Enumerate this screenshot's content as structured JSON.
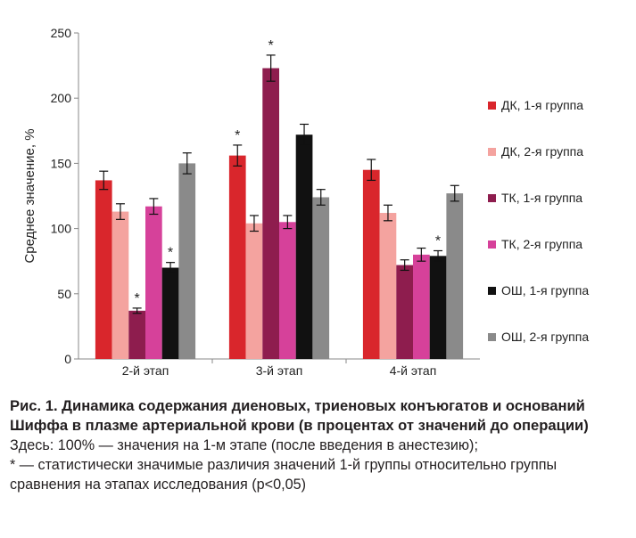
{
  "chart_data": {
    "type": "bar",
    "ylabel": "Среднее значение, %",
    "ylim": [
      0,
      250
    ],
    "yticks": [
      0,
      50,
      100,
      150,
      200,
      250
    ],
    "categories": [
      "2-й этап",
      "3-й этап",
      "4-й этап"
    ],
    "series": [
      {
        "name": "ДК, 1-я группа",
        "color": "#d9262c",
        "values": [
          137,
          156,
          145
        ],
        "errors": [
          7,
          8,
          8
        ],
        "significant": [
          false,
          true,
          false
        ]
      },
      {
        "name": "ДК, 2-я группа",
        "color": "#f4a39f",
        "values": [
          113,
          104,
          112
        ],
        "errors": [
          6,
          6,
          6
        ],
        "significant": [
          false,
          false,
          false
        ]
      },
      {
        "name": "ТК, 1-я группа",
        "color": "#8e1d4e",
        "values": [
          37,
          223,
          72
        ],
        "errors": [
          2,
          10,
          4
        ],
        "significant": [
          true,
          true,
          false
        ]
      },
      {
        "name": "ТК, 2-я группа",
        "color": "#d6419a",
        "values": [
          117,
          105,
          80
        ],
        "errors": [
          6,
          5,
          5
        ],
        "significant": [
          false,
          false,
          false
        ]
      },
      {
        "name": "ОШ, 1-я группа",
        "color": "#111111",
        "values": [
          70,
          172,
          79
        ],
        "errors": [
          4,
          8,
          4
        ],
        "significant": [
          true,
          false,
          true
        ]
      },
      {
        "name": "ОШ, 2-я группа",
        "color": "#8a8a8a",
        "values": [
          150,
          124,
          127
        ],
        "errors": [
          8,
          6,
          6
        ],
        "significant": [
          false,
          false,
          false
        ]
      }
    ],
    "significance_marker": "*",
    "grid": false,
    "legend_position": "right"
  },
  "caption": {
    "title": "Рис. 1. Динамика содержания диеновых, триеновых конъюгатов и оснований Шиффа в плазме артериальной крови (в процентах от значений до операции)",
    "note_1": "Здесь: 100% — значения на 1-м этапе (после введения в анестезию);",
    "note_2": "* — статистически значимые различия значений 1-й группы относительно группы сравнения на этапах исследования (p<0,05)"
  }
}
